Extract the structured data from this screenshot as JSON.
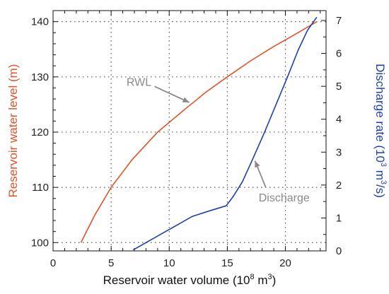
{
  "chart_data": {
    "type": "line",
    "title": "",
    "xlabel": {
      "main": "Reservoir water volume (10",
      "sup": "8",
      "tail": " m",
      "sup2": "3",
      "end": ")"
    },
    "xlim": [
      0,
      23.5
    ],
    "xticks": [
      0,
      5,
      10,
      15,
      20
    ],
    "y_left": {
      "label": "Reservoir water level (m)",
      "ylim": [
        98.5,
        142
      ],
      "ticks": [
        100,
        110,
        120,
        130,
        140
      ],
      "color": "#e0522a"
    },
    "y_right": {
      "label": {
        "main": "Discharge rate (10",
        "sup": "3",
        "tail": " m",
        "sup2": "3",
        "end": "/s)"
      },
      "ylim": [
        0,
        7.3
      ],
      "ticks": [
        0,
        1,
        2,
        3,
        4,
        5,
        6,
        7
      ],
      "color": "#1f3fae"
    },
    "grid": true,
    "series": [
      {
        "name": "RWL",
        "axis": "left",
        "color": "#e0522a",
        "x": [
          2.4,
          3.6,
          5.0,
          6.8,
          9.0,
          11.5,
          13.2,
          15.0,
          17.0,
          19.0,
          21.0,
          22.7
        ],
        "y": [
          100,
          105,
          110,
          115,
          120,
          124.4,
          127.3,
          130,
          132.9,
          135.5,
          137.9,
          140
        ]
      },
      {
        "name": "Discharge",
        "axis": "right",
        "color": "#1f3fae",
        "x": [
          6.9,
          8.5,
          10.0,
          12.0,
          13.5,
          14.9,
          15.5,
          16.3,
          17.2,
          18.2,
          19.2,
          20.2,
          21.1,
          21.9,
          22.7
        ],
        "y": [
          0.03,
          0.35,
          0.65,
          1.05,
          1.22,
          1.37,
          1.65,
          2.1,
          2.8,
          3.6,
          4.45,
          5.3,
          6.1,
          6.7,
          7.1
        ]
      }
    ],
    "annotations": [
      {
        "text": "RWL",
        "target_series": "RWL",
        "target_x": 11.9,
        "target_y": 125,
        "text_x": 7.4,
        "text_y": 128.4
      },
      {
        "text": "Discharge",
        "target_series": "Discharge",
        "target_x": 17.2,
        "target_y": 2.8,
        "text_x": 17.7,
        "text_y": 1.5
      }
    ]
  }
}
